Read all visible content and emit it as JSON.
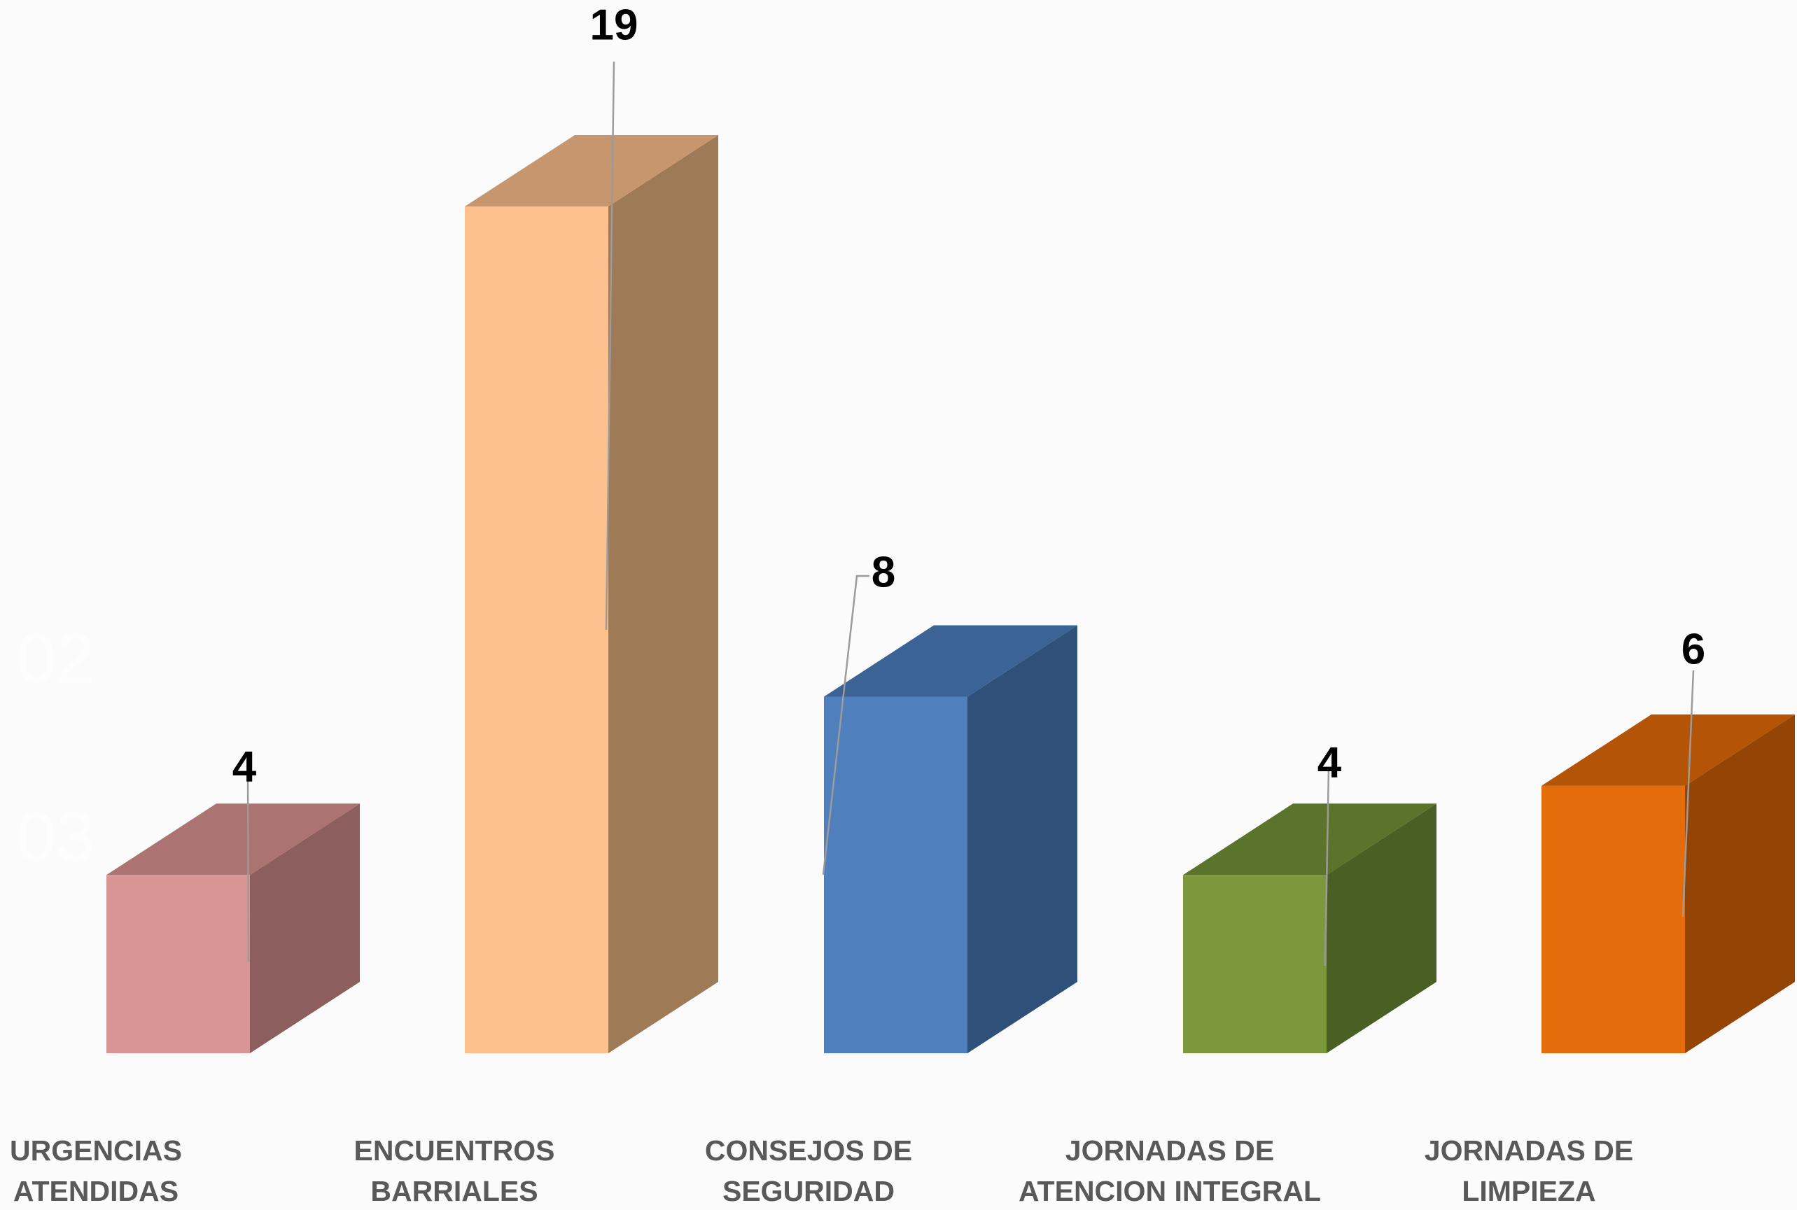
{
  "chart_data": {
    "type": "bar",
    "style": "3d-column",
    "categories": [
      [
        "URGENCIAS",
        "ATENDIDAS"
      ],
      [
        "ENCUENTROS",
        "BARRIALES"
      ],
      [
        "CONSEJOS DE",
        "SEGURIDAD"
      ],
      [
        "JORNADAS DE",
        "ATENCION INTEGRAL"
      ],
      [
        "JORNADAS DE",
        "LIMPIEZA"
      ]
    ],
    "values": [
      4,
      19,
      8,
      4,
      6
    ],
    "data_labels": [
      "4",
      "19",
      "8",
      "4",
      "6"
    ],
    "colors": [
      {
        "front": "#d99594",
        "top": "#ab7472",
        "side": "#8c5f5e"
      },
      {
        "front": "#fdc08f",
        "top": "#c6976e",
        "side": "#9e7a57"
      },
      {
        "front": "#4f80bd",
        "top": "#3b6396",
        "side": "#2f5179"
      },
      {
        "front": "#7b993c",
        "top": "#5a742c",
        "side": "#4a5f24"
      },
      {
        "front": "#e46c0a",
        "top": "#b35407",
        "side": "#944505"
      }
    ],
    "ylim": [
      0,
      19
    ],
    "faint_marks": [
      "02",
      "03"
    ],
    "title": "",
    "xlabel": "",
    "ylabel": ""
  }
}
